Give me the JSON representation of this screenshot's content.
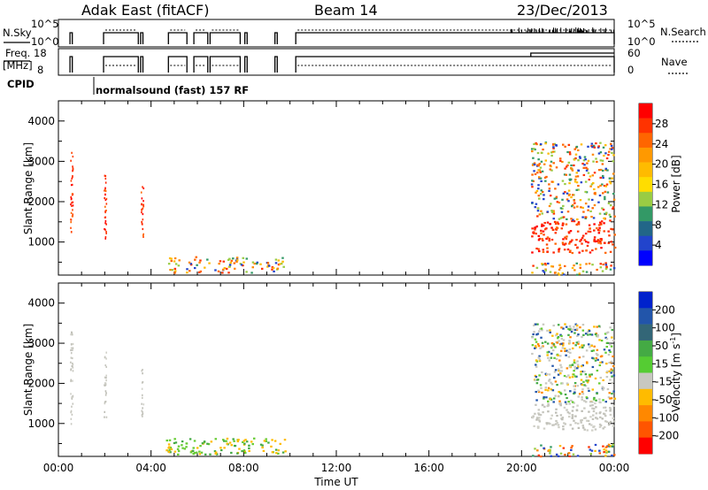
{
  "header": {
    "station": "Adak East (fitACF)",
    "beam": "Beam 14",
    "date": "23/Dec/2013"
  },
  "strip": {
    "nsky_label": "N.Sky",
    "nsearch_label": "N.Search",
    "freq_label_line1": "Freq.",
    "freq_label_line2": "[MHz]",
    "nave_label": "Nave",
    "cpid_label": "CPID",
    "cpid_text": "normalsound (fast) 157 RF",
    "nsky_ticks": [
      "10^5",
      "10^0"
    ],
    "nsearch_ticks": [
      "10^5",
      "10^0"
    ],
    "freq_ticks": [
      "18",
      "8"
    ],
    "nave_ticks": [
      "60",
      "0"
    ]
  },
  "chart_data": [
    {
      "type": "heatmap",
      "name": "power-panel",
      "ylabel": "Slant Range [km]",
      "xlabel": "",
      "xlim_hours": [
        0,
        24
      ],
      "ylim": [
        180,
        4500
      ],
      "x_ticks": [
        "00:00",
        "04:00",
        "08:00",
        "12:00",
        "16:00",
        "20:00",
        "00:00"
      ],
      "y_ticks": [
        1000,
        2000,
        3000,
        4000
      ],
      "colorbar": {
        "label": "Power [dB]",
        "ticks": [
          "28",
          "24",
          "20",
          "16",
          "12",
          "8",
          "4"
        ],
        "colors": [
          "#ff0000",
          "#ff3300",
          "#ff6600",
          "#ff9900",
          "#ffbb00",
          "#ffdd00",
          "#99cc44",
          "#339966",
          "#226688",
          "#2244cc",
          "#0000ff"
        ]
      },
      "scatter_regions": [
        {
          "t": [
            0.5,
            0.6
          ],
          "r": [
            1000,
            3300
          ],
          "tone": "high"
        },
        {
          "t": [
            1.95,
            2.05
          ],
          "r": [
            1100,
            2800
          ],
          "tone": "high"
        },
        {
          "t": [
            3.55,
            3.65
          ],
          "r": [
            1050,
            2400
          ],
          "tone": "high"
        },
        {
          "t": [
            4.6,
            9.8
          ],
          "r": [
            250,
            650
          ],
          "tone": "mixed"
        },
        {
          "t": [
            20.4,
            24
          ],
          "r": [
            750,
            1550
          ],
          "tone": "high"
        },
        {
          "t": [
            20.4,
            24
          ],
          "r": [
            1550,
            3500
          ],
          "tone": "mixed"
        },
        {
          "t": [
            20.4,
            24
          ],
          "r": [
            200,
            500
          ],
          "tone": "mixed"
        }
      ]
    },
    {
      "type": "heatmap",
      "name": "velocity-panel",
      "ylabel": "Slant Range [km]",
      "xlabel": "Time UT",
      "xlim_hours": [
        0,
        24
      ],
      "ylim": [
        180,
        4500
      ],
      "x_ticks": [
        "00:00",
        "04:00",
        "08:00",
        "12:00",
        "16:00",
        "20:00",
        "00:00"
      ],
      "y_ticks": [
        1000,
        2000,
        3000,
        4000
      ],
      "colorbar": {
        "label": "Velocity [m s",
        "label_sup": "-1",
        "label_end": "]",
        "ticks": [
          "200",
          "100",
          "50",
          "15",
          "-15",
          "-50",
          "-100",
          "-200"
        ],
        "colors": [
          "#0022cc",
          "#2255aa",
          "#336677",
          "#44aa44",
          "#55cc33",
          "#c8c8c0",
          "#ffbb00",
          "#ff8800",
          "#ff5500",
          "#ff0000"
        ]
      },
      "scatter_regions": [
        {
          "t": [
            0.5,
            0.6
          ],
          "r": [
            1000,
            3300
          ],
          "tone": "grey"
        },
        {
          "t": [
            1.95,
            2.05
          ],
          "r": [
            1100,
            2800
          ],
          "tone": "grey"
        },
        {
          "t": [
            3.55,
            3.65
          ],
          "r": [
            1050,
            2400
          ],
          "tone": "grey"
        },
        {
          "t": [
            4.6,
            9.8
          ],
          "r": [
            250,
            650
          ],
          "tone": "green"
        },
        {
          "t": [
            20.4,
            24
          ],
          "r": [
            850,
            1550
          ],
          "tone": "grey"
        },
        {
          "t": [
            20.4,
            24
          ],
          "r": [
            1550,
            3500
          ],
          "tone": "greymixed"
        },
        {
          "t": [
            20.4,
            24
          ],
          "r": [
            200,
            500
          ],
          "tone": "mixed"
        }
      ]
    }
  ],
  "colors": {
    "grey_scatter": "#c8c8c0",
    "ground_green": "#66cc33"
  }
}
